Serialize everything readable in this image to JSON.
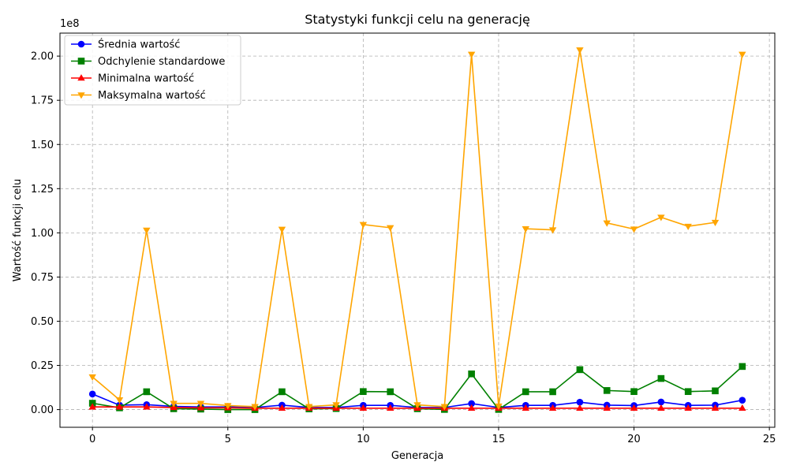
{
  "chart_data": {
    "type": "line",
    "title": "Statystyki funkcji celu na generację",
    "xlabel": "Generacja",
    "ylabel": "Wartość funkcji celu",
    "y_offset_label": "1e8",
    "y_multiplier": 100000000,
    "xlim": [
      -1.2,
      25.2
    ],
    "ylim": [
      -10000000,
      213000000
    ],
    "x_ticks": [
      0,
      5,
      10,
      15,
      20,
      25
    ],
    "x_tick_labels": [
      "0",
      "5",
      "10",
      "15",
      "20",
      "25"
    ],
    "y_ticks": [
      0,
      25000000,
      50000000,
      75000000,
      100000000,
      125000000,
      150000000,
      175000000,
      200000000
    ],
    "y_tick_labels": [
      "0.00",
      "0.25",
      "0.50",
      "0.75",
      "1.00",
      "1.25",
      "1.50",
      "1.75",
      "2.00"
    ],
    "grid": true,
    "legend_position": "top-left",
    "x": [
      0,
      1,
      2,
      3,
      4,
      5,
      6,
      7,
      8,
      9,
      10,
      11,
      12,
      13,
      14,
      15,
      16,
      17,
      18,
      19,
      20,
      21,
      22,
      23,
      24
    ],
    "series": [
      {
        "name": "Średnia wartość",
        "color": "#0000ff",
        "marker": "circle",
        "values": [
          8800000,
          2500000,
          2800000,
          1800000,
          1500000,
          1500000,
          1200000,
          2500000,
          1200000,
          1200000,
          2400000,
          2400000,
          1200000,
          1200000,
          3400000,
          1200000,
          2400000,
          2400000,
          4200000,
          2500000,
          2300000,
          4300000,
          2400000,
          2500000,
          5300000
        ]
      },
      {
        "name": "Odchylenie standardowe",
        "color": "#008000",
        "marker": "square",
        "values": [
          3600000,
          1000000,
          10100000,
          500000,
          300000,
          0,
          0,
          10100000,
          400000,
          600000,
          10200000,
          10100000,
          500000,
          100000,
          20200000,
          100000,
          10100000,
          10100000,
          22600000,
          10800000,
          10200000,
          17600000,
          10200000,
          10600000,
          24400000
        ]
      },
      {
        "name": "Minimalna wartość",
        "color": "#ff0000",
        "marker": "triangle-up",
        "values": [
          1500000,
          1500000,
          1500000,
          1200000,
          1000000,
          1000000,
          800000,
          800000,
          800000,
          800000,
          800000,
          800000,
          800000,
          800000,
          800000,
          800000,
          800000,
          800000,
          800000,
          800000,
          800000,
          800000,
          800000,
          800000,
          800000
        ]
      },
      {
        "name": "Maksymalna wartość",
        "color": "#ffa500",
        "marker": "triangle-down",
        "values": [
          18500000,
          5500000,
          101500000,
          3500000,
          3500000,
          2300000,
          1700000,
          102000000,
          1700000,
          2700000,
          104700000,
          102900000,
          2700000,
          1700000,
          201000000,
          2000000,
          102300000,
          101700000,
          203500000,
          105600000,
          102100000,
          108800000,
          103700000,
          105900000,
          201000000
        ]
      }
    ]
  }
}
